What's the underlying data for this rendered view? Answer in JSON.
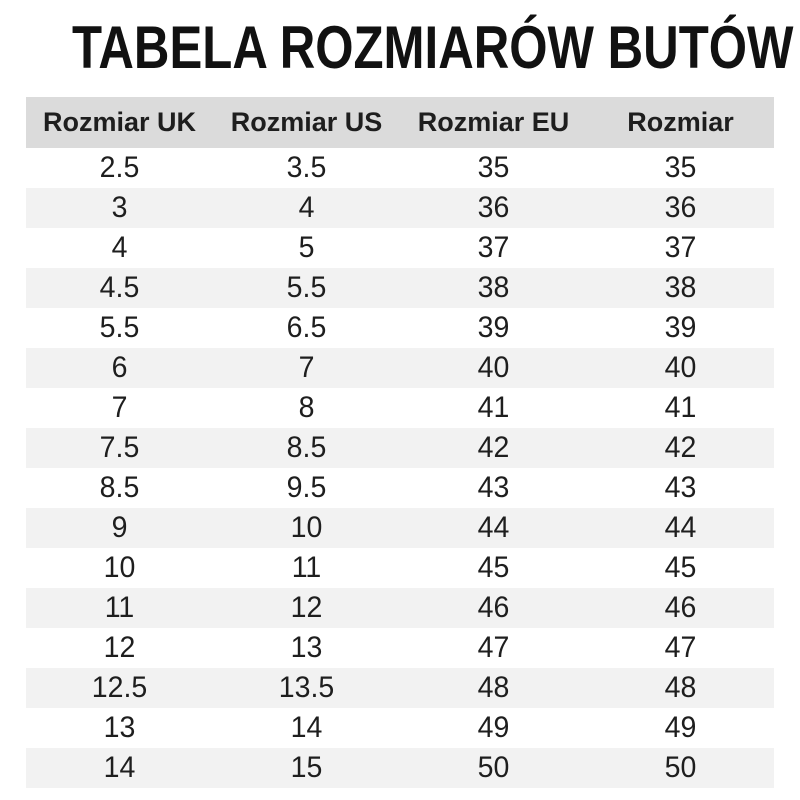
{
  "page": {
    "title": "TABELA ROZMIARÓW BUTÓW"
  },
  "colors": {
    "header_bg": "#dbdbdb",
    "row_alt_bg": "#f2f2f2",
    "row_bg": "#ffffff",
    "text": "#1e1e1e",
    "title": "#111111"
  },
  "chart_data": {
    "type": "table",
    "title": "TABELA ROZMIARÓW BUTÓW",
    "columns": [
      "Rozmiar UK",
      "Rozmiar US",
      "Rozmiar EU",
      "Rozmiar"
    ],
    "rows": [
      [
        "2.5",
        "3.5",
        "35",
        "35"
      ],
      [
        "3",
        "4",
        "36",
        "36"
      ],
      [
        "4",
        "5",
        "37",
        "37"
      ],
      [
        "4.5",
        "5.5",
        "38",
        "38"
      ],
      [
        "5.5",
        "6.5",
        "39",
        "39"
      ],
      [
        "6",
        "7",
        "40",
        "40"
      ],
      [
        "7",
        "8",
        "41",
        "41"
      ],
      [
        "7.5",
        "8.5",
        "42",
        "42"
      ],
      [
        "8.5",
        "9.5",
        "43",
        "43"
      ],
      [
        "9",
        "10",
        "44",
        "44"
      ],
      [
        "10",
        "11",
        "45",
        "45"
      ],
      [
        "11",
        "12",
        "46",
        "46"
      ],
      [
        "12",
        "13",
        "47",
        "47"
      ],
      [
        "12.5",
        "13.5",
        "48",
        "48"
      ],
      [
        "13",
        "14",
        "49",
        "49"
      ],
      [
        "14",
        "15",
        "50",
        "50"
      ]
    ],
    "layout": {
      "zebra_striping": true,
      "header_background": "#dbdbdb",
      "stripe_background": "#f2f2f2",
      "columns_equal_width": true
    }
  }
}
